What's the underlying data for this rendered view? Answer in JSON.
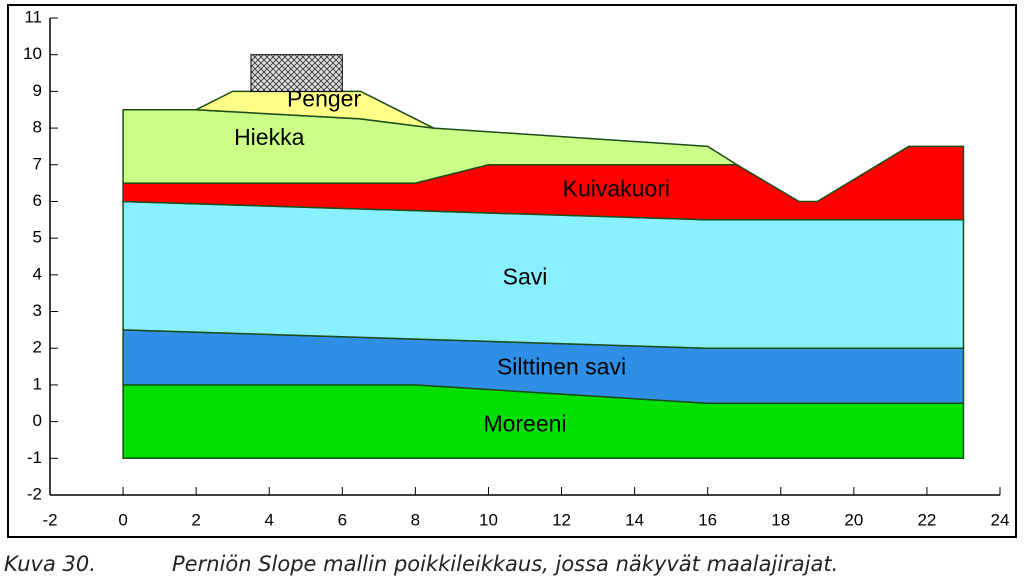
{
  "chart_data": {
    "type": "cross-section",
    "xlim": [
      -2,
      24
    ],
    "xticks": [
      -2,
      0,
      2,
      4,
      6,
      8,
      10,
      12,
      14,
      16,
      18,
      20,
      22,
      24
    ],
    "ylim": [
      -2,
      11
    ],
    "yticks": [
      -2,
      -1,
      0,
      1,
      2,
      3,
      4,
      5,
      6,
      7,
      8,
      9,
      10,
      11
    ],
    "layers": [
      {
        "name": "Moreeni",
        "color": "#00e000",
        "x": [
          0,
          8,
          16,
          21.5,
          23,
          23,
          0
        ],
        "y": [
          1,
          1,
          0.5,
          0.5,
          0.5,
          -1,
          -1
        ]
      },
      {
        "name": "Silttinen savi",
        "color": "#2f8fe6",
        "x": [
          0,
          16,
          21.5,
          23,
          23,
          21.5,
          16,
          8,
          0
        ],
        "y": [
          2.5,
          2,
          2,
          2,
          0.5,
          0.5,
          0.5,
          1,
          1
        ]
      },
      {
        "name": "Savi",
        "color": "#88f0ff",
        "x": [
          0,
          16,
          21.5,
          23,
          23,
          21.5,
          16,
          0
        ],
        "y": [
          6,
          5.5,
          5.5,
          5.5,
          2,
          2,
          2,
          2.5
        ]
      },
      {
        "name": "Kuivakuori",
        "color": "#ff0000",
        "x": [
          0,
          8,
          10,
          16,
          16.8,
          18.5,
          19,
          21.5,
          23,
          23,
          21.5,
          16,
          0
        ],
        "y": [
          6.5,
          6.5,
          7,
          7,
          7,
          6,
          6,
          7.5,
          7.5,
          5.5,
          5.5,
          5.5,
          6
        ]
      },
      {
        "name": "Hiekka",
        "color": "#ccff88",
        "x": [
          0,
          2,
          6.5,
          8.5,
          16,
          16.8,
          16,
          10,
          8,
          0
        ],
        "y": [
          8.5,
          8.5,
          8.25,
          8,
          7.5,
          7,
          7,
          7,
          6.5,
          6.5
        ]
      },
      {
        "name": "Penger",
        "color": "#ffff88",
        "x": [
          2,
          3,
          6.5,
          8.5,
          6.5
        ],
        "y": [
          8.5,
          9,
          9,
          8,
          8.25
        ]
      }
    ],
    "load": {
      "x": [
        3.5,
        6
      ],
      "y": [
        9,
        10
      ]
    }
  },
  "caption": {
    "number": "Kuva 30.",
    "text": "Perniön Slope mallin poikkileikkaus, jossa näkyvät maalajirajat."
  }
}
